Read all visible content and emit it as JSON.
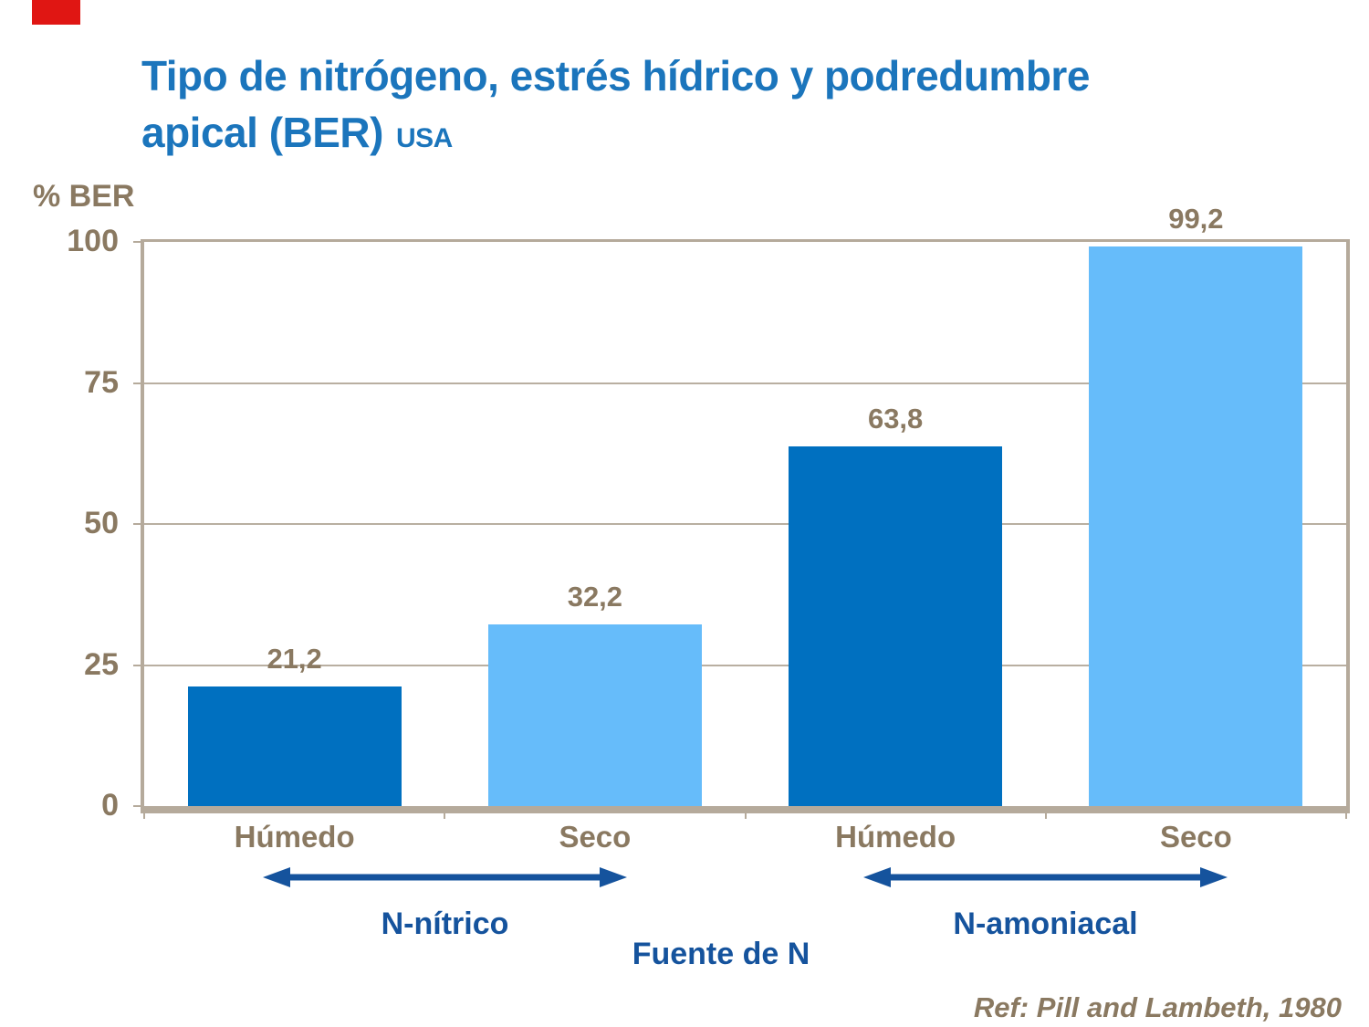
{
  "title": {
    "line1": "Tipo de nitrógeno, estrés hídrico y podredumbre",
    "line2": "apical (BER)",
    "suffix": "USA"
  },
  "chart_data": {
    "type": "bar",
    "title": "Tipo de nitrógeno, estrés hídrico y podredumbre apical (BER) USA",
    "ylabel": "% BER",
    "xlabel": "Fuente de N",
    "ylim": [
      0,
      100
    ],
    "yticks": [
      0,
      25,
      50,
      75,
      100
    ],
    "grid": true,
    "legend_position": "none",
    "categories": [
      "Húmedo",
      "Seco",
      "Húmedo",
      "Seco"
    ],
    "values": [
      21.2,
      32.2,
      63.8,
      99.2
    ],
    "value_labels": [
      "21,2",
      "32,2",
      "63,8",
      "99,2"
    ],
    "bar_colors": [
      "#0070C0",
      "#66BCFA",
      "#0070C0",
      "#66BCFA"
    ],
    "groups": [
      {
        "label": "N-nítrico",
        "span": [
          0,
          1
        ]
      },
      {
        "label": "N-amoniacal",
        "span": [
          2,
          3
        ]
      }
    ],
    "annotation": "Ref: Pill and Lambeth, 1980"
  },
  "reference": "Ref: Pill and Lambeth, 1980",
  "colors": {
    "background": "#FFFFFF",
    "title_blue": "#1B75BC",
    "label_blue": "#15539D",
    "arrow_blue": "#15539D",
    "text_brown": "#8A7961",
    "frame_taupe": "#B5AA9B",
    "bar_dark_blue": "#0070C0",
    "bar_light_blue": "#66BCFA",
    "red_marker": "#E01613"
  }
}
